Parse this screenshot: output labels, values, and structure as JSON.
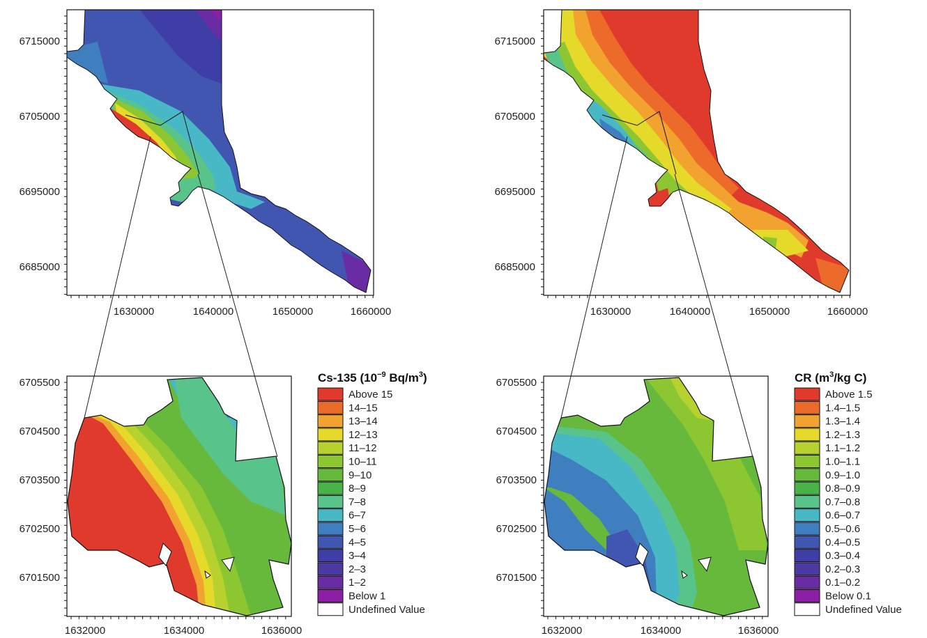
{
  "panels": [
    {
      "id": "cs135-overview",
      "x_ticks": [
        "1630000",
        "1640000",
        "1650000",
        "1660000"
      ],
      "y_ticks": [
        "6715000",
        "6705000",
        "6695000",
        "6685000"
      ]
    },
    {
      "id": "cr-overview",
      "x_ticks": [
        "1630000",
        "1640000",
        "1650000",
        "1660000"
      ],
      "y_ticks": [
        "6715000",
        "6705000",
        "6695000",
        "6685000"
      ]
    },
    {
      "id": "cs135-detail",
      "x_ticks": [
        "1632000",
        "1634000",
        "1636000"
      ],
      "y_ticks": [
        "6705500",
        "6704500",
        "6703500",
        "6702500",
        "6701500"
      ]
    },
    {
      "id": "cr-detail",
      "x_ticks": [
        "1632000",
        "1634000",
        "1636000"
      ],
      "y_ticks": [
        "6705500",
        "6704500",
        "6703500",
        "6702500",
        "6701500"
      ]
    }
  ],
  "legends": [
    {
      "id": "cs135-legend",
      "title": "Cs-135 (10",
      "title_sup": "−9",
      "title_mid": " Bq/m",
      "title_sup2": "3",
      "title_end": ")",
      "items": [
        {
          "label": "Above 15",
          "color": "#e03a2c"
        },
        {
          "label": "14–15",
          "color": "#ec6a2a"
        },
        {
          "label": "13–14",
          "color": "#f1a22f"
        },
        {
          "label": "12–13",
          "color": "#e5d92a"
        },
        {
          "label": "11–12",
          "color": "#b7d22e"
        },
        {
          "label": "10–11",
          "color": "#8cc630"
        },
        {
          "label": "9–10",
          "color": "#66b93b"
        },
        {
          "label": "8–9",
          "color": "#49b34a"
        },
        {
          "label": "7–8",
          "color": "#58c48a"
        },
        {
          "label": "6–7",
          "color": "#48b7c6"
        },
        {
          "label": "5–6",
          "color": "#3f7fbf"
        },
        {
          "label": "4–5",
          "color": "#4156b0"
        },
        {
          "label": "3–4",
          "color": "#3f3ea6"
        },
        {
          "label": "2–3",
          "color": "#4b3aa2"
        },
        {
          "label": "1–2",
          "color": "#6a2ca3"
        },
        {
          "label": "Below 1",
          "color": "#8c1ea6"
        },
        {
          "label": "Undefined Value",
          "color": "#ffffff"
        }
      ]
    },
    {
      "id": "cr-legend",
      "title": "CR (m",
      "title_sup": "3",
      "title_mid": "/kg C)",
      "title_sup2": "",
      "title_end": "",
      "items": [
        {
          "label": "Above 1.5",
          "color": "#e03a2c"
        },
        {
          "label": "1.4–1.5",
          "color": "#ec6a2a"
        },
        {
          "label": "1.3–1.4",
          "color": "#f1a22f"
        },
        {
          "label": "1.2–1.3",
          "color": "#e5d92a"
        },
        {
          "label": "1.1–1.2",
          "color": "#b7d22e"
        },
        {
          "label": "1.0–1.1",
          "color": "#8cc630"
        },
        {
          "label": "0.9–1.0",
          "color": "#66b93b"
        },
        {
          "label": "0.8–0.9",
          "color": "#49b34a"
        },
        {
          "label": "0.7–0.8",
          "color": "#58c48a"
        },
        {
          "label": "0.6–0.7",
          "color": "#48b7c6"
        },
        {
          "label": "0.5–0.6",
          "color": "#3f7fbf"
        },
        {
          "label": "0.4–0.5",
          "color": "#4156b0"
        },
        {
          "label": "0.3–0.4",
          "color": "#3f3ea6"
        },
        {
          "label": "0.2–0.3",
          "color": "#4b3aa2"
        },
        {
          "label": "0.1–0.2",
          "color": "#6a2ca3"
        },
        {
          "label": "Below 0.1",
          "color": "#8c1ea6"
        },
        {
          "label": "Undefined Value",
          "color": "#ffffff"
        }
      ]
    }
  ]
}
